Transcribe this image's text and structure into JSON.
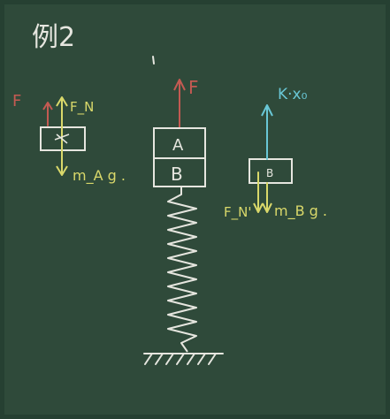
{
  "board": {
    "title": "例2",
    "colors": {
      "board": "#2f4a3a",
      "white": "#e6e6df",
      "red": "#c45a52",
      "yellow": "#d9d86a",
      "cyan": "#69c7d6"
    }
  },
  "diagram": {
    "block_a_label": "A",
    "block_b_label": "B",
    "force_f_label": "F",
    "spring_force_label": "K·x₀",
    "fbd_left": {
      "force_f_label": "F",
      "normal_label": "F_N",
      "gravity_label": "m_A g ."
    },
    "fbd_right": {
      "normal_label": "F_N'",
      "gravity_label": "m_B g ."
    }
  }
}
